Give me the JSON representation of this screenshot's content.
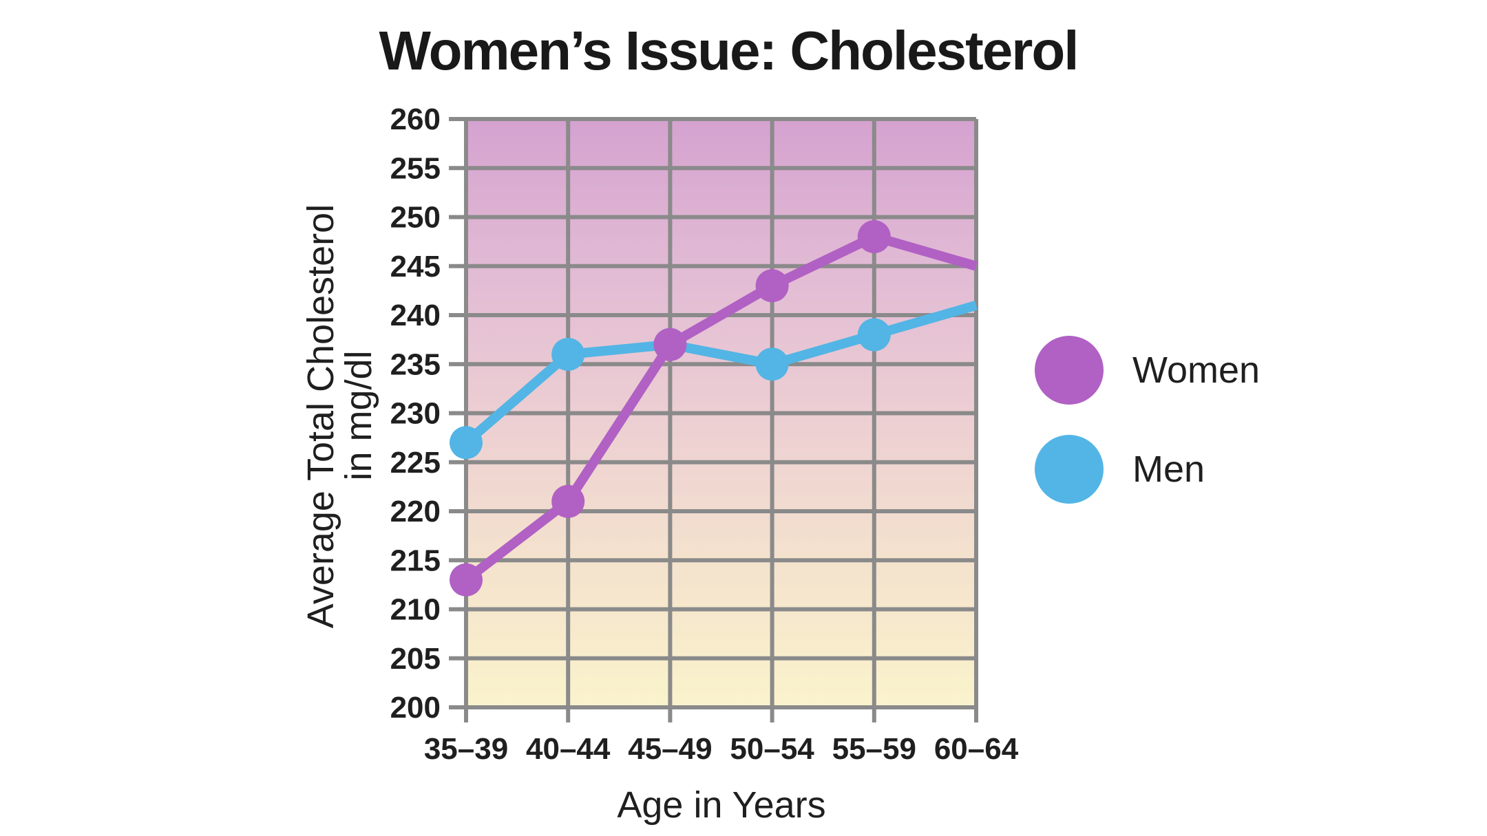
{
  "page": {
    "background": "#ffffff"
  },
  "chart_data": {
    "type": "line",
    "title": "Women’s Issue: Cholesterol",
    "xlabel": "Age in Years",
    "ylabel": "Average Total Cholesterol in mg/dl",
    "ylabel_lines": [
      "Average Total Cholesterol",
      "in mg/dl"
    ],
    "categories": [
      "35–39",
      "40–44",
      "45–49",
      "50–54",
      "55–59",
      "60–64"
    ],
    "series": [
      {
        "name": "Women",
        "color": "#b160c4",
        "values": [
          213,
          221,
          237,
          243,
          248,
          245
        ]
      },
      {
        "name": "Men",
        "color": "#52b5e5",
        "values": [
          227,
          236,
          237,
          235,
          238,
          241
        ]
      }
    ],
    "ylim": [
      200,
      260
    ],
    "yticks": [
      200,
      205,
      210,
      215,
      220,
      225,
      230,
      235,
      240,
      245,
      250,
      255,
      260
    ],
    "grid": true,
    "legend_position": "right",
    "plot_bg_gradient": [
      "#d5a2d0",
      "#e1bad4",
      "#ecced3",
      "#f4e2cd",
      "#faf3cc"
    ],
    "grid_color": "#8a8a8a",
    "text_color": "#1f1f1f",
    "markers": "all-points-except-last"
  }
}
